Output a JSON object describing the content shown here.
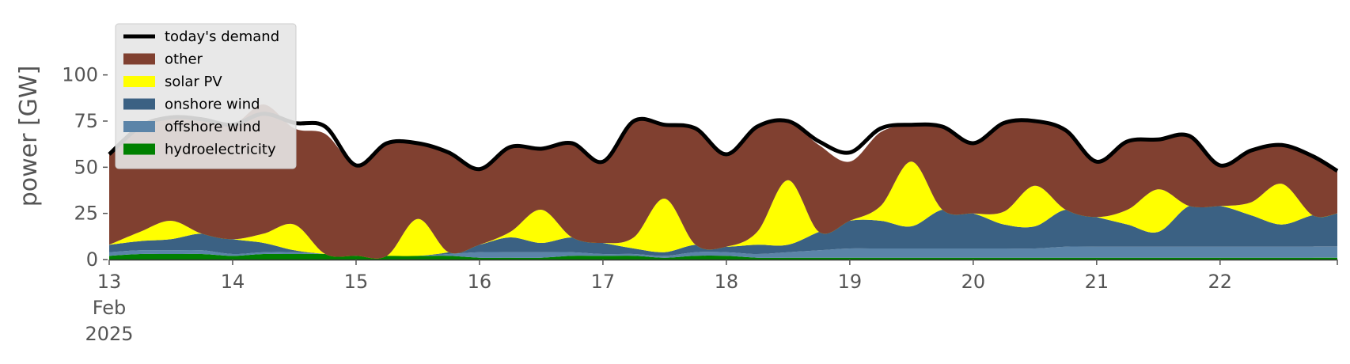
{
  "chart_data": {
    "type": "area",
    "ylabel": "power [GW]",
    "ylim": [
      0,
      120
    ],
    "yticks": [
      0,
      25,
      50,
      75,
      100
    ],
    "x": [
      13,
      13.25,
      13.5,
      13.75,
      14,
      14.25,
      14.5,
      14.75,
      15,
      15.25,
      15.5,
      15.75,
      16,
      16.25,
      16.5,
      16.75,
      17,
      17.25,
      17.5,
      17.75,
      18,
      18.25,
      18.5,
      18.75,
      19,
      19.25,
      19.5,
      19.75,
      20,
      20.25,
      20.5,
      20.75,
      21,
      21.25,
      21.5,
      21.75,
      22,
      22.25,
      22.5,
      22.75,
      22.95
    ],
    "xlim": [
      13,
      22.95
    ],
    "xticks": [
      {
        "value": 13,
        "lines": [
          "13",
          "Feb",
          "2025"
        ]
      },
      {
        "value": 14,
        "lines": [
          "14"
        ]
      },
      {
        "value": 15,
        "lines": [
          "15"
        ]
      },
      {
        "value": 16,
        "lines": [
          "16"
        ]
      },
      {
        "value": 17,
        "lines": [
          "17"
        ]
      },
      {
        "value": 18,
        "lines": [
          "18"
        ]
      },
      {
        "value": 19,
        "lines": [
          "19"
        ]
      },
      {
        "value": 20,
        "lines": [
          "20"
        ]
      },
      {
        "value": 21,
        "lines": [
          "21"
        ]
      },
      {
        "value": 22,
        "lines": [
          "22"
        ]
      }
    ],
    "series": [
      {
        "name": "hydroelectricity",
        "color": "#008000",
        "values": [
          2,
          3,
          3,
          3,
          2,
          3,
          3,
          3,
          2,
          2,
          2,
          2,
          1,
          1,
          1,
          2,
          2,
          2,
          1,
          2,
          2,
          1,
          1,
          1,
          1,
          1,
          1,
          1,
          1,
          1,
          1,
          1,
          1,
          1,
          1,
          1,
          1,
          1,
          1,
          1,
          1
        ]
      },
      {
        "name": "offshore wind",
        "color": "#5b84a8",
        "values": [
          2,
          2,
          2,
          2,
          1,
          1,
          1,
          0,
          0,
          0,
          0,
          1,
          3,
          3,
          3,
          2,
          1,
          1,
          1,
          2,
          2,
          2,
          3,
          4,
          5,
          5,
          5,
          5,
          5,
          5,
          5,
          6,
          6,
          6,
          6,
          6,
          6,
          6,
          6,
          6,
          6
        ]
      },
      {
        "name": "onshore wind",
        "color": "#3b6183",
        "values": [
          4,
          5,
          6,
          9,
          8,
          5,
          1,
          0,
          0,
          0,
          0,
          1,
          4,
          8,
          5,
          8,
          6,
          3,
          2,
          4,
          3,
          5,
          4,
          10,
          15,
          15,
          12,
          21,
          19,
          13,
          12,
          20,
          16,
          12,
          8,
          22,
          22,
          17,
          12,
          17,
          18
        ]
      },
      {
        "name": "solar PV",
        "color": "#ffff00",
        "values": [
          0,
          5,
          10,
          0,
          0,
          5,
          14,
          0,
          0,
          0,
          20,
          0,
          0,
          3,
          18,
          0,
          0,
          6,
          29,
          0,
          0,
          7,
          35,
          0,
          0,
          8,
          35,
          0,
          0,
          7,
          22,
          0,
          0,
          8,
          23,
          0,
          0,
          7,
          22,
          0,
          0
        ]
      },
      {
        "name": "other",
        "color": "#804030",
        "values": [
          49,
          57,
          56,
          62,
          62,
          70,
          52,
          65,
          49,
          60,
          41,
          54,
          41,
          46,
          33,
          51,
          44,
          63,
          40,
          63,
          50,
          57,
          32,
          47,
          32,
          40,
          20,
          45,
          38,
          48,
          35,
          42,
          30,
          37,
          27,
          38,
          22,
          28,
          21,
          32,
          23
        ]
      },
      {
        "name": "today's demand",
        "color": "#000000",
        "line": true,
        "values": [
          57,
          72,
          77,
          76,
          73,
          79,
          74,
          72,
          51,
          63,
          63,
          58,
          49,
          61,
          60,
          63,
          53,
          75,
          73,
          71,
          57,
          72,
          75,
          64,
          58,
          71,
          73,
          72,
          63,
          74,
          75,
          70,
          53,
          64,
          65,
          67,
          51,
          59,
          62,
          56,
          48
        ]
      }
    ],
    "legend": {
      "placement": "top-left",
      "entries": [
        {
          "label": "today's demand",
          "color": "#000000",
          "kind": "line"
        },
        {
          "label": "other",
          "color": "#804030",
          "kind": "patch"
        },
        {
          "label": "solar PV",
          "color": "#ffff00",
          "kind": "patch"
        },
        {
          "label": "onshore wind",
          "color": "#3b6183",
          "kind": "patch"
        },
        {
          "label": "offshore wind",
          "color": "#5b84a8",
          "kind": "patch"
        },
        {
          "label": "hydroelectricity",
          "color": "#008000",
          "kind": "patch"
        }
      ]
    },
    "grid": false
  }
}
